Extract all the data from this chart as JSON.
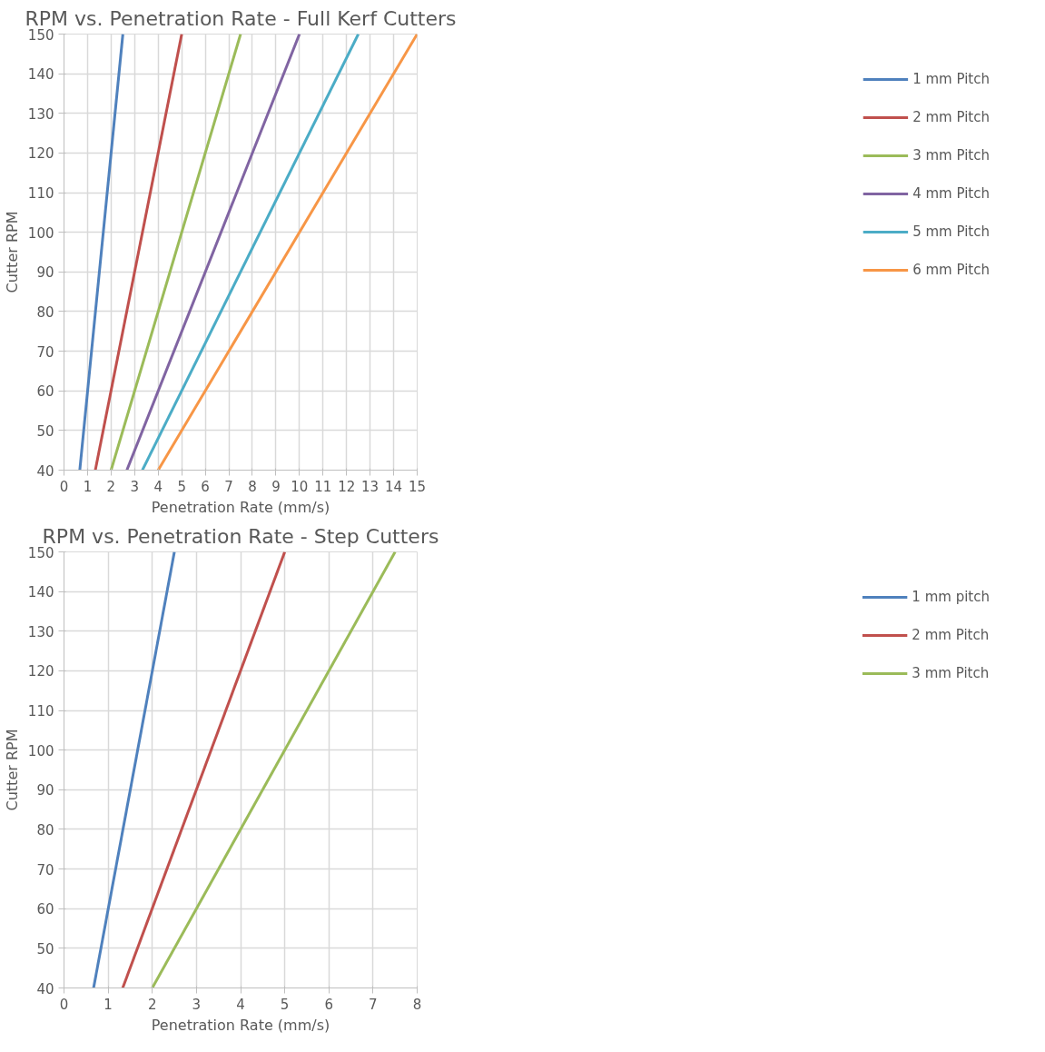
{
  "chart_data": [
    {
      "type": "line",
      "title": "RPM vs. Penetration Rate - Full Kerf Cutters",
      "xlabel": "Penetration Rate (mm/s)",
      "ylabel": "Cutter RPM",
      "xlim": [
        0,
        15
      ],
      "ylim": [
        40,
        150
      ],
      "xticks": [
        0,
        1,
        2,
        3,
        4,
        5,
        6,
        7,
        8,
        9,
        10,
        11,
        12,
        13,
        14,
        15
      ],
      "yticks": [
        40,
        50,
        60,
        70,
        80,
        90,
        100,
        110,
        120,
        130,
        140,
        150
      ],
      "grid": true,
      "legend": "right",
      "marker": "none",
      "line_style": "solid",
      "series": [
        {
          "name": "1 mm Pitch",
          "color": "#4f81bd",
          "x": [
            0.67,
            2.5
          ],
          "values": [
            40,
            150
          ]
        },
        {
          "name": "2 mm Pitch",
          "color": "#c0504d",
          "x": [
            1.33,
            5
          ],
          "values": [
            40,
            150
          ]
        },
        {
          "name": "3 mm Pitch",
          "color": "#9bbb59",
          "x": [
            2,
            7.5
          ],
          "values": [
            40,
            150
          ]
        },
        {
          "name": "4 mm Pitch",
          "color": "#8064a2",
          "x": [
            2.67,
            10
          ],
          "values": [
            40,
            150
          ]
        },
        {
          "name": "5 mm Pitch",
          "color": "#4bacc6",
          "x": [
            3.33,
            12.5
          ],
          "values": [
            40,
            150
          ]
        },
        {
          "name": "6 mm Pitch",
          "color": "#f79646",
          "x": [
            4,
            15
          ],
          "values": [
            40,
            150
          ]
        }
      ]
    },
    {
      "type": "line",
      "title": "RPM vs. Penetration Rate - Step Cutters",
      "xlabel": "Penetration Rate (mm/s)",
      "ylabel": "Cutter RPM",
      "xlim": [
        0,
        8
      ],
      "ylim": [
        40,
        150
      ],
      "xticks": [
        0,
        1,
        2,
        3,
        4,
        5,
        6,
        7,
        8
      ],
      "yticks": [
        40,
        50,
        60,
        70,
        80,
        90,
        100,
        110,
        120,
        130,
        140,
        150
      ],
      "grid": true,
      "legend": "right",
      "marker": "none",
      "line_style": "solid",
      "series": [
        {
          "name": "1 mm pitch",
          "color": "#4f81bd",
          "x": [
            0.67,
            2.5
          ],
          "values": [
            40,
            150
          ]
        },
        {
          "name": "2 mm Pitch",
          "color": "#c0504d",
          "x": [
            1.33,
            5
          ],
          "values": [
            40,
            150
          ]
        },
        {
          "name": "3 mm Pitch",
          "color": "#9bbb59",
          "x": [
            2,
            7.5
          ],
          "values": [
            40,
            150
          ]
        }
      ]
    }
  ]
}
